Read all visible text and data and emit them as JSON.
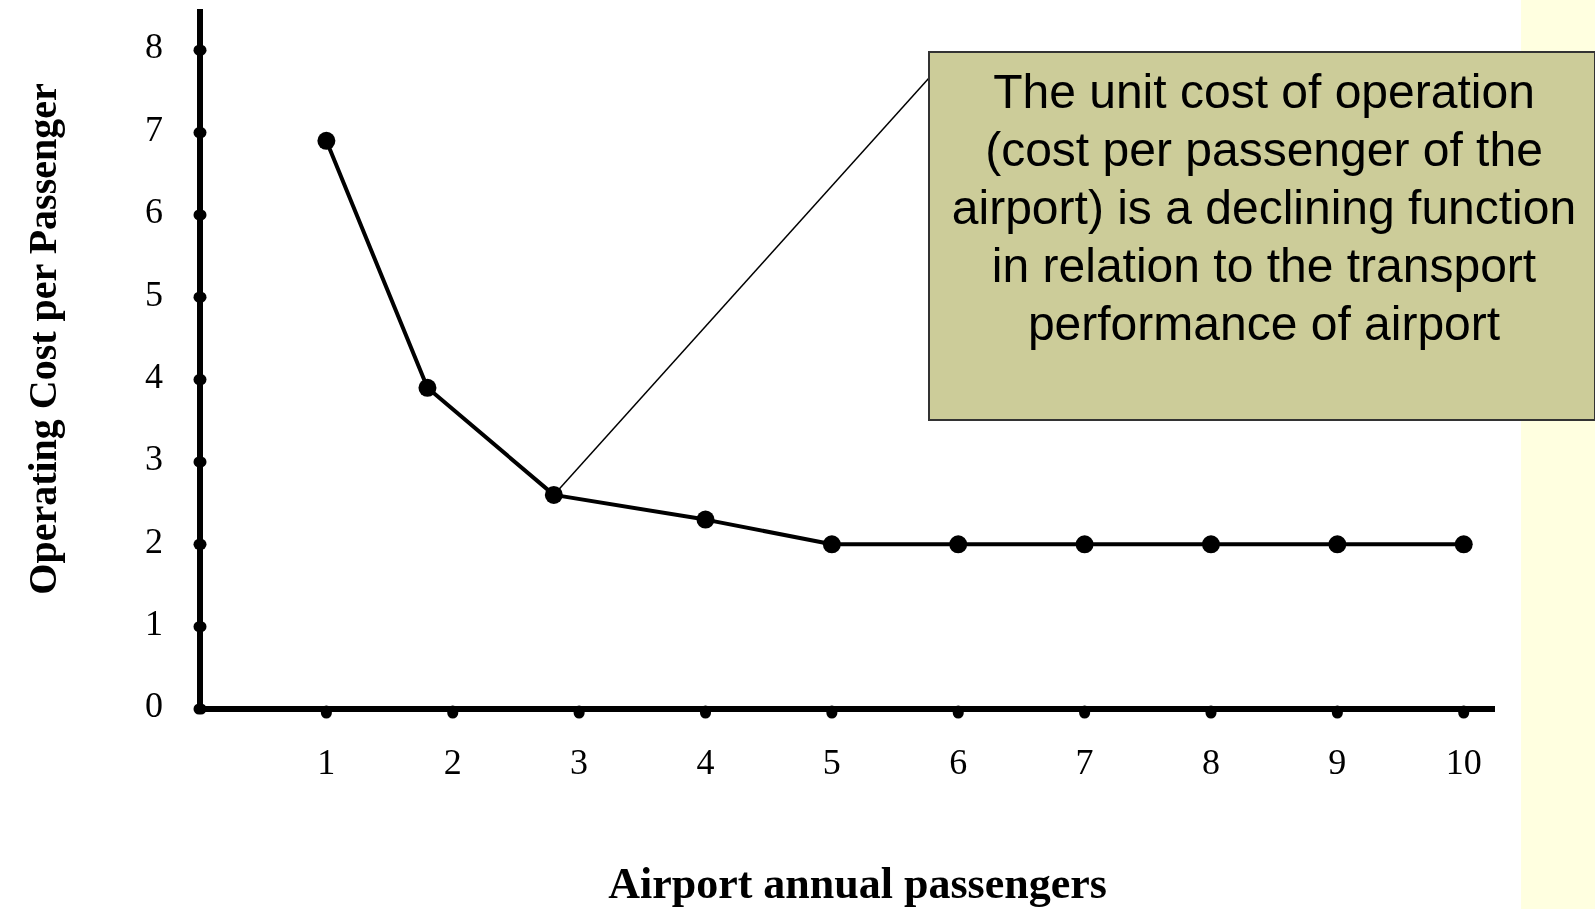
{
  "chart_data": {
    "type": "line",
    "xlabel": "Airport annual passengers",
    "ylabel": "Operating Cost per Passenger",
    "x": [
      1,
      1.8,
      2.8,
      4,
      5,
      6,
      7,
      8,
      9,
      10
    ],
    "series": [
      {
        "color": "#000000",
        "values": [
          6.9,
          3.9,
          2.6,
          2.3,
          2.0,
          2.0,
          2.0,
          2.0,
          2.0,
          2.0
        ]
      }
    ],
    "xlim": [
      0,
      10.2
    ],
    "xticks": [
      1,
      2,
      3,
      4,
      5,
      6,
      7,
      8,
      9,
      10
    ],
    "ylim": [
      0,
      8.5
    ],
    "yticks": [
      0,
      1,
      2,
      3,
      4,
      5,
      6,
      7,
      8
    ],
    "grid": false,
    "marker": "circle",
    "line_style": "solid",
    "annotations": [
      {
        "text": "The unit cost of operation (cost per passenger of the airport) is a declining function in relation to the transport performance of airport",
        "x": 2.8,
        "y": 2.6
      }
    ]
  }
}
